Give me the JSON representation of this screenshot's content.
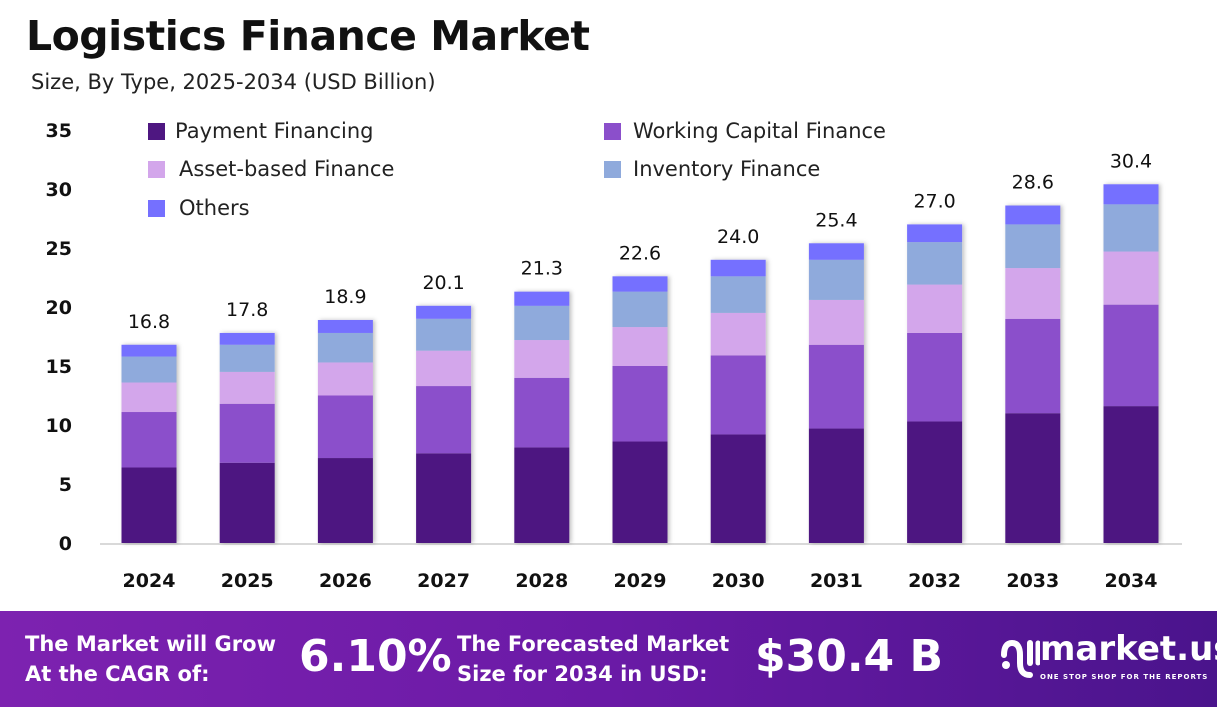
{
  "chart_data": {
    "type": "bar",
    "stacked": true,
    "title": "Logistics Finance Market",
    "subtitle": "Size, By Type, 2025-2034 (USD Billion)",
    "categories": [
      "2024",
      "2025",
      "2026",
      "2027",
      "2028",
      "2029",
      "2030",
      "2031",
      "2032",
      "2033",
      "2034"
    ],
    "totals": [
      "16.8",
      "17.8",
      "18.9",
      "20.1",
      "21.3",
      "22.6",
      "24.0",
      "25.4",
      "27.0",
      "28.6",
      "30.4"
    ],
    "ylim": [
      0,
      35
    ],
    "yticks": [
      "0",
      "5",
      "10",
      "15",
      "20",
      "25",
      "30",
      "35"
    ],
    "grid": false,
    "legend_position": "top-left",
    "series": [
      {
        "name": "Payment Financing",
        "color": "#4e1781",
        "values": [
          6.4,
          6.8,
          7.2,
          7.6,
          8.1,
          8.6,
          9.2,
          9.7,
          10.3,
          11.0,
          11.6
        ]
      },
      {
        "name": "Working Capital Finance",
        "color": "#8b4fcb",
        "values": [
          4.7,
          5.0,
          5.3,
          5.7,
          5.9,
          6.4,
          6.7,
          7.1,
          7.5,
          8.0,
          8.6
        ]
      },
      {
        "name": "Asset-based Finance",
        "color": "#d3a6eb",
        "values": [
          2.5,
          2.7,
          2.8,
          3.0,
          3.2,
          3.3,
          3.6,
          3.8,
          4.1,
          4.3,
          4.5
        ]
      },
      {
        "name": "Inventory Finance",
        "color": "#8faadc",
        "values": [
          2.2,
          2.3,
          2.5,
          2.7,
          2.9,
          3.0,
          3.1,
          3.4,
          3.6,
          3.7,
          4.0
        ]
      },
      {
        "name": "Others",
        "color": "#7570ff",
        "values": [
          1.0,
          1.0,
          1.1,
          1.1,
          1.2,
          1.3,
          1.4,
          1.4,
          1.5,
          1.6,
          1.7
        ]
      }
    ]
  },
  "footer": {
    "cagr_label_line1": "The Market will Grow",
    "cagr_label_line2": "At the CAGR of:",
    "cagr_value": "6.10%",
    "forecast_label_line1": "The Forecasted Market",
    "forecast_label_line2": "Size for 2034 in USD:",
    "forecast_value": "$30.4 B",
    "brand": "market.us",
    "tagline": "ONE STOP SHOP FOR THE REPORTS"
  }
}
